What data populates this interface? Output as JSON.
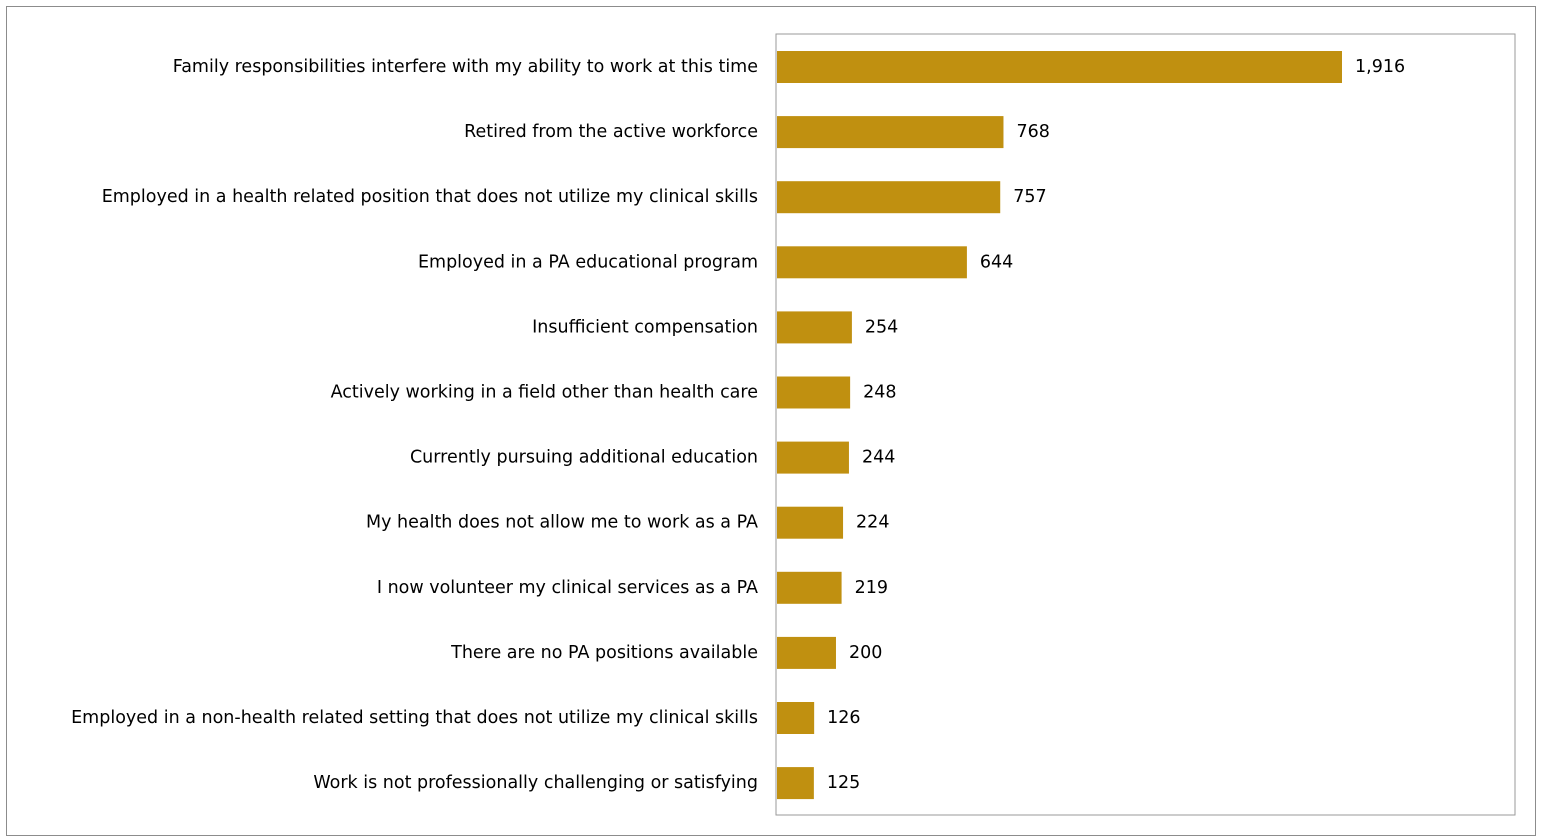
{
  "chart_data": {
    "type": "bar",
    "orientation": "horizontal",
    "categories": [
      "Family responsibilities interfere with my ability to work at this time",
      "Retired from the active workforce",
      "Employed in a health related position that does not utilize my clinical skills",
      "Employed in a PA educational program",
      "Insufficient compensation",
      "Actively working in a field other than health care",
      "Currently pursuing additional education",
      "My health does not allow me to work as a PA",
      "I now volunteer my clinical services as a PA",
      "There are no PA positions available",
      "Employed in a non-health related setting that does not utilize my clinical skills",
      "Work is not professionally challenging or satisfying"
    ],
    "values": [
      1916,
      768,
      757,
      644,
      254,
      248,
      244,
      224,
      219,
      200,
      126,
      125
    ],
    "data_labels": [
      "1,916",
      "768",
      "757",
      "644",
      "254",
      "248",
      "244",
      "224",
      "219",
      "200",
      "126",
      "125"
    ],
    "title": "",
    "xlabel": "",
    "ylabel": "",
    "xlim": [
      0,
      2450
    ],
    "grid": false,
    "legend": "none",
    "bar_color": "#c09010"
  }
}
